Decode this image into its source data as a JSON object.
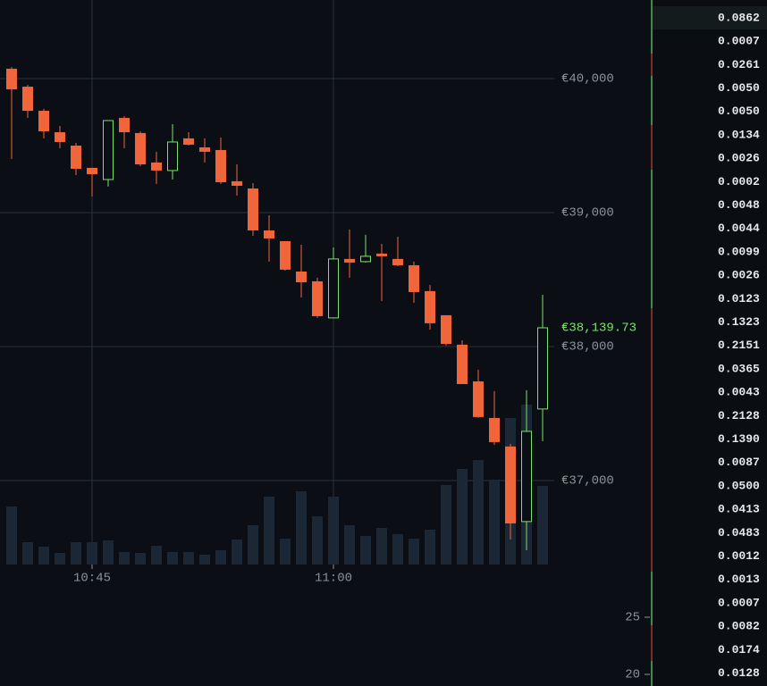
{
  "chart_data": {
    "type": "candlestick",
    "categories": [
      null,
      null,
      null,
      null,
      null,
      "10:45",
      null,
      null,
      null,
      null,
      null,
      null,
      null,
      null,
      null,
      null,
      null,
      null,
      null,
      null,
      "11:00",
      null,
      null,
      null,
      null,
      null,
      null,
      null,
      null,
      null,
      null,
      null,
      null,
      null
    ],
    "open": [
      40074,
      39940,
      39760,
      39600,
      39500,
      39334,
      39247,
      39707,
      39594,
      39374,
      39314,
      39554,
      39487,
      39467,
      39234,
      39180,
      38867,
      38787,
      38560,
      38487,
      38214,
      38654,
      38634,
      38694,
      38654,
      38607,
      38414,
      38234,
      38014,
      37740,
      37467,
      37254,
      36694,
      37534
    ],
    "high": [
      40087,
      39954,
      39774,
      39647,
      39520,
      39334,
      39687,
      39720,
      39607,
      39454,
      39660,
      39600,
      39554,
      39560,
      39360,
      39220,
      38980,
      38787,
      38760,
      38514,
      38740,
      38874,
      38834,
      38767,
      38820,
      38634,
      38460,
      38234,
      38047,
      37827,
      37667,
      37274,
      37674,
      38387
    ],
    "low": [
      39400,
      39707,
      39554,
      39480,
      39280,
      39120,
      39194,
      39480,
      39347,
      39214,
      39247,
      39500,
      39374,
      39214,
      39127,
      38827,
      38634,
      38567,
      38367,
      38214,
      38214,
      38514,
      38627,
      38340,
      38600,
      38327,
      38127,
      38007,
      37720,
      37467,
      37267,
      36560,
      36480,
      37294
    ],
    "close": [
      39920,
      39760,
      39607,
      39527,
      39327,
      39287,
      39687,
      39600,
      39360,
      39314,
      39527,
      39507,
      39454,
      39227,
      39200,
      38867,
      38807,
      38574,
      38480,
      38227,
      38654,
      38627,
      38674,
      38674,
      38607,
      38407,
      38174,
      38020,
      37720,
      37474,
      37287,
      36680,
      37367,
      38140
    ],
    "volume": [
      65,
      25,
      20,
      13,
      25,
      25,
      27,
      14,
      13,
      21,
      14,
      14,
      11,
      16,
      28,
      44,
      76,
      29,
      82,
      54,
      76,
      44,
      32,
      41,
      34,
      29,
      39,
      89,
      107,
      117,
      95,
      164,
      179,
      88
    ],
    "up_color": "#7be06c",
    "down_color": "#f0663a",
    "volume_color": "#1b2734",
    "ylim": [
      36373,
      40587
    ],
    "yticks": [
      {
        "value": 40000,
        "label": "€40,000"
      },
      {
        "value": 39000,
        "label": "€39,000"
      },
      {
        "value": 38000,
        "label": "€38,000"
      },
      {
        "value": 37000,
        "label": "€37,000"
      }
    ],
    "last_price": {
      "value": 38139.73,
      "label": "€38,139.73"
    },
    "grid": true
  },
  "depth_scale": {
    "ticks": [
      25,
      20
    ]
  },
  "order_book": {
    "amounts": [
      "0.0862",
      "0.0007",
      "0.0261",
      "0.0050",
      "0.0050",
      "0.0134",
      "0.0026",
      "0.0002",
      "0.0048",
      "0.0044",
      "0.0099",
      "0.0026",
      "0.0123",
      "0.1323",
      "0.2151",
      "0.0365",
      "0.0043",
      "0.2128",
      "0.1390",
      "0.0087",
      "0.0500",
      "0.0413",
      "0.0483",
      "0.0012",
      "0.0013",
      "0.0007",
      "0.0082",
      "0.0174",
      "0.0128"
    ]
  }
}
